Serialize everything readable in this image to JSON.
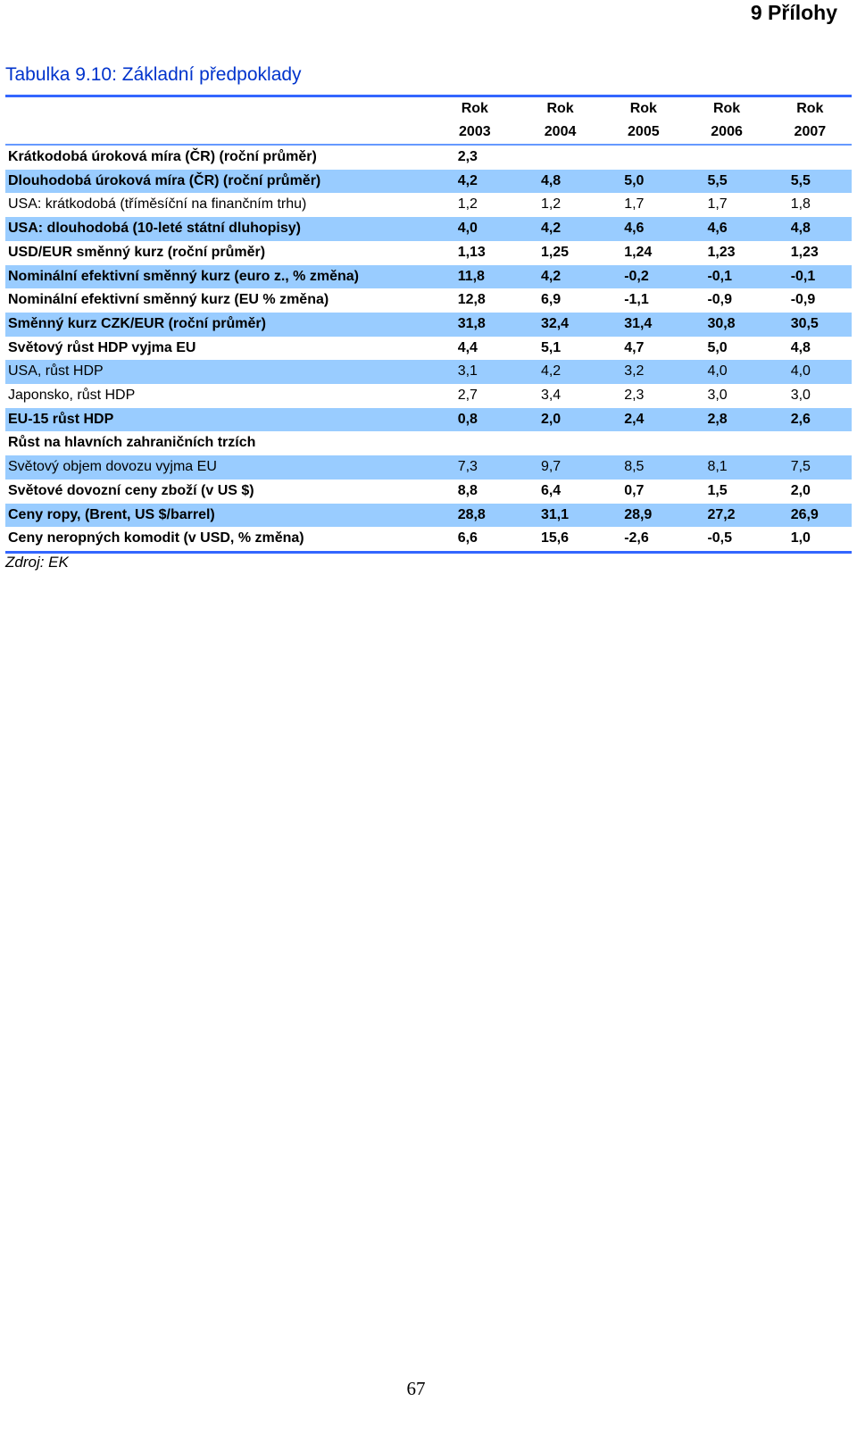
{
  "chapter_heading": "9 Přílohy",
  "table_caption": "Tabulka 9.10: Základní předpoklady",
  "columns": [
    {
      "line1": "Rok",
      "line2": "2003"
    },
    {
      "line1": "Rok",
      "line2": "2004"
    },
    {
      "line1": "Rok",
      "line2": "2005"
    },
    {
      "line1": "Rok",
      "line2": "2006"
    },
    {
      "line1": "Rok",
      "line2": "2007"
    }
  ],
  "rows": [
    {
      "label": "Krátkodobá úroková míra (ČR) (roční průměr)",
      "values": [
        "2,3",
        "",
        "",
        "",
        ""
      ]
    },
    {
      "label": "Dlouhodobá úroková míra (ČR) (roční průměr)",
      "values": [
        "4,2",
        "4,8",
        "5,0",
        "5,5",
        "5,5"
      ]
    },
    {
      "label": "USA: krátkodobá (tříměsíční na finančním trhu)",
      "values": [
        "1,2",
        "1,2",
        "1,7",
        "1,7",
        "1,8"
      ]
    },
    {
      "label": "USA: dlouhodobá (10-leté státní dluhopisy)",
      "values": [
        "4,0",
        "4,2",
        "4,6",
        "4,6",
        "4,8"
      ]
    },
    {
      "label": "USD/EUR směnný kurz (roční průměr)",
      "values": [
        "1,13",
        "1,25",
        "1,24",
        "1,23",
        "1,23"
      ]
    },
    {
      "label": "Nominální efektivní směnný kurz (euro z., % změna)",
      "values": [
        "11,8",
        "4,2",
        "-0,2",
        "-0,1",
        "-0,1"
      ]
    },
    {
      "label": "Nominální efektivní směnný kurz (EU % změna)",
      "values": [
        "12,8",
        "6,9",
        "-1,1",
        "-0,9",
        "-0,9"
      ]
    },
    {
      "label": "Směnný kurz CZK/EUR (roční průměr)",
      "values": [
        "31,8",
        "32,4",
        "31,4",
        "30,8",
        "30,5"
      ]
    },
    {
      "label": "Světový růst HDP vyjma EU",
      "values": [
        "4,4",
        "5,1",
        "4,7",
        "5,0",
        "4,8"
      ]
    },
    {
      "label": "USA, růst HDP",
      "values": [
        "3,1",
        "4,2",
        "3,2",
        "4,0",
        "4,0"
      ]
    },
    {
      "label": "Japonsko, růst HDP",
      "values": [
        "2,7",
        "3,4",
        "2,3",
        "3,0",
        "3,0"
      ]
    },
    {
      "label": "EU-15 růst HDP",
      "values": [
        "0,8",
        "2,0",
        "2,4",
        "2,8",
        "2,6"
      ]
    },
    {
      "label": "Růst na hlavních zahraničních trzích",
      "values": [
        "",
        "",
        "",
        "",
        ""
      ]
    },
    {
      "label": "Světový objem dovozu vyjma EU",
      "values": [
        "7,3",
        "9,7",
        "8,5",
        "8,1",
        "7,5"
      ]
    },
    {
      "label": "Světové dovozní ceny zboží (v US $)",
      "values": [
        "8,8",
        "6,4",
        "0,7",
        "1,5",
        "2,0"
      ]
    },
    {
      "label": "Ceny ropy, (Brent, US $/barrel)",
      "values": [
        "28,8",
        "31,1",
        "28,9",
        "27,2",
        "26,9"
      ]
    },
    {
      "label": "Ceny neropných komodit (v USD, % změna)",
      "values": [
        "6,6",
        "15,6",
        "-2,6",
        "-0,5",
        "1,0"
      ]
    }
  ],
  "source_note": "Zdroj: EK",
  "page_number": "67",
  "colors": {
    "caption": "#0033cc",
    "rule": "#3366ff",
    "row_shade": "#99ccff"
  }
}
